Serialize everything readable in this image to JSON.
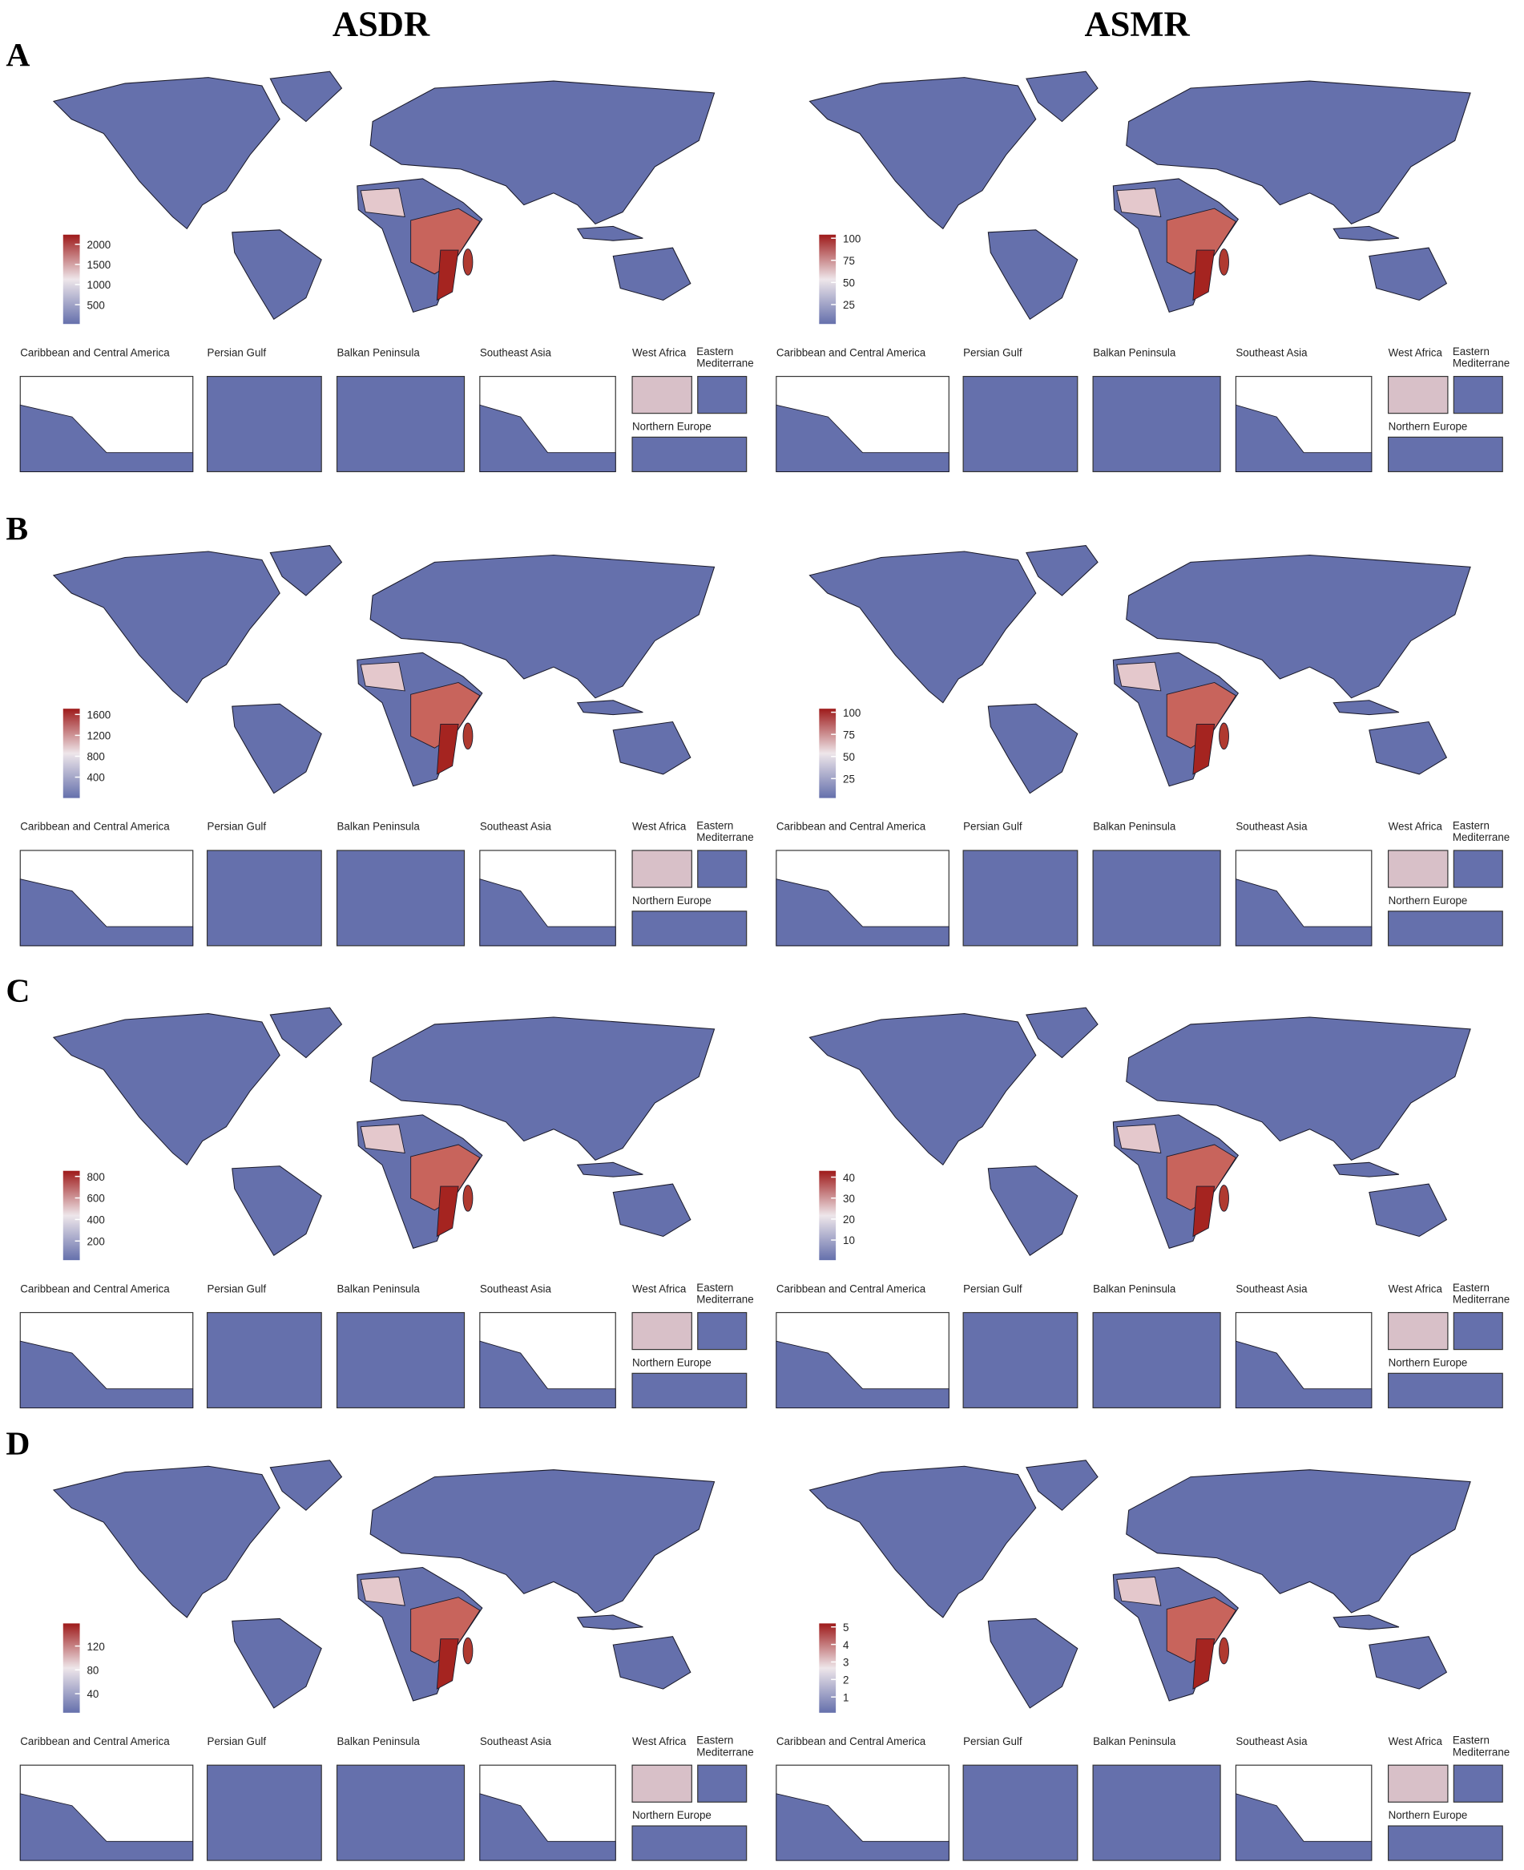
{
  "columns": [
    "ASDR",
    "ASMR"
  ],
  "insets": [
    "Caribbean and Central America",
    "Persian Gulf",
    "Balkan Peninsula",
    "Southeast Asia",
    "West Africa",
    "Eastern Mediterrane",
    "Northern Europe"
  ],
  "panels": [
    {
      "label": "A",
      "legends": [
        {
          "range": [
            20,
            2240
          ],
          "ticks": [
            500,
            1000,
            1500,
            2000
          ]
        },
        {
          "range": [
            3,
            104
          ],
          "ticks": [
            25,
            50,
            75,
            100
          ]
        }
      ]
    },
    {
      "label": "B",
      "legends": [
        {
          "range": [
            0,
            1710
          ],
          "ticks": [
            400,
            800,
            1200,
            1600
          ]
        },
        {
          "range": [
            3,
            104
          ],
          "ticks": [
            25,
            50,
            75,
            100
          ]
        }
      ]
    },
    {
      "label": "C",
      "legends": [
        {
          "range": [
            22,
            852
          ],
          "ticks": [
            200,
            400,
            600,
            800
          ]
        },
        {
          "range": [
            0.4,
            43
          ],
          "ticks": [
            10,
            20,
            30,
            40
          ]
        }
      ]
    },
    {
      "label": "D",
      "legends": [
        {
          "range": [
            8,
            158
          ],
          "ticks": [
            40,
            80,
            120
          ]
        },
        {
          "range": [
            0.1,
            5.2
          ],
          "ticks": [
            1,
            2,
            3,
            4,
            5
          ]
        }
      ]
    }
  ]
}
